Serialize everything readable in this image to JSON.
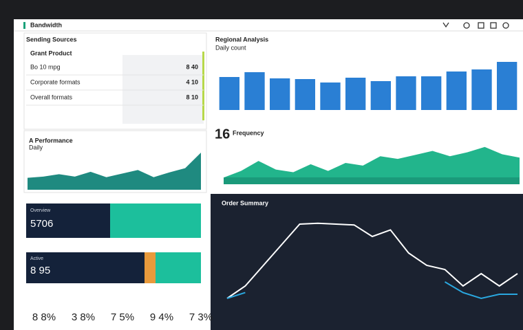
{
  "header": {
    "title": "Bandwidth"
  },
  "table": {
    "title": "Sending Sources",
    "subtitle": "Grant Product",
    "rows": [
      [
        "Bo 10 mpg",
        "8 40"
      ],
      [
        "Corporate formats",
        "4 10"
      ],
      [
        "Overall formats",
        "8 10"
      ]
    ]
  },
  "area_left": {
    "type": "area",
    "title": "A Performance",
    "subtitle": "Daily",
    "values": [
      20,
      22,
      26,
      22,
      30,
      21,
      27,
      33,
      21,
      29,
      36,
      62
    ],
    "ylim": [
      0,
      70
    ],
    "color": "#1f8a80"
  },
  "kpi1": {
    "label": "Overview",
    "value": "5706"
  },
  "kpi2": {
    "label": "Active",
    "value": "8 95"
  },
  "stats": [
    "8 8%",
    "3 8%",
    "7 5%",
    "9 4%",
    "7 3%"
  ],
  "bars": {
    "type": "bar",
    "title": "Regional Analysis",
    "subtitle": "Daily count",
    "values": [
      48,
      55,
      46,
      45,
      40,
      47,
      42,
      49,
      49,
      56,
      59,
      70
    ],
    "ylim": [
      0,
      80
    ],
    "color": "#2a7fd4"
  },
  "area_right": {
    "type": "area",
    "number": "16",
    "title": "Frequency",
    "values": [
      10,
      20,
      35,
      22,
      18,
      30,
      20,
      32,
      28,
      42,
      38,
      44,
      50,
      42,
      48,
      56,
      45,
      40
    ],
    "ylim": [
      0,
      65
    ],
    "color": "#22b58c"
  },
  "line": {
    "type": "line",
    "title": "Order Summary",
    "ylim": [
      0,
      100
    ],
    "series": [
      {
        "color": "#ffffff",
        "values": [
          5,
          20,
          45,
          70,
          95,
          96,
          95,
          94,
          80,
          88,
          60,
          45,
          40,
          20,
          35,
          20,
          35
        ]
      },
      {
        "color": "#2aa8e0",
        "values": [
          5,
          12,
          null,
          null,
          null,
          null,
          null,
          null,
          null,
          null,
          null,
          null,
          25,
          12,
          5,
          10,
          10
        ]
      }
    ]
  }
}
